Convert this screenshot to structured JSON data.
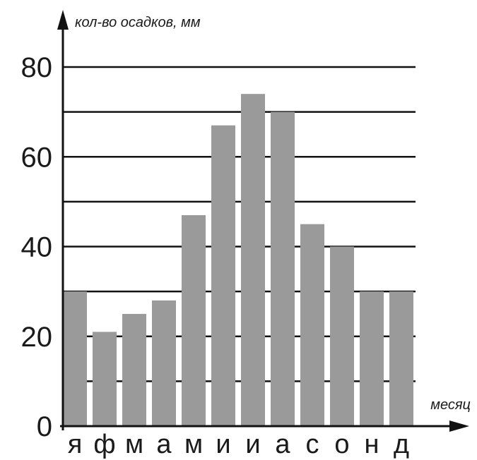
{
  "chart_data": {
    "type": "bar",
    "title": "",
    "ylabel": "кол-во осадков, мм",
    "xlabel": "месяц",
    "categories": [
      "я",
      "ф",
      "м",
      "а",
      "м",
      "и",
      "и",
      "а",
      "с",
      "о",
      "н",
      "д"
    ],
    "values": [
      30,
      21,
      25,
      28,
      47,
      67,
      74,
      70,
      45,
      40,
      30,
      30
    ],
    "ylim": [
      0,
      80
    ],
    "yticks": [
      0,
      20,
      40,
      60,
      80
    ],
    "y_tick_labels": [
      "0",
      "20",
      "40",
      "60",
      "80"
    ],
    "gridlines": [
      10,
      20,
      30,
      40,
      50,
      60,
      70,
      80
    ],
    "grid": true,
    "legend": "none",
    "colors": {
      "bar": "#9a9a9a",
      "grid": "#111111",
      "axis": "#111111",
      "text": "#1a1a1a"
    }
  }
}
